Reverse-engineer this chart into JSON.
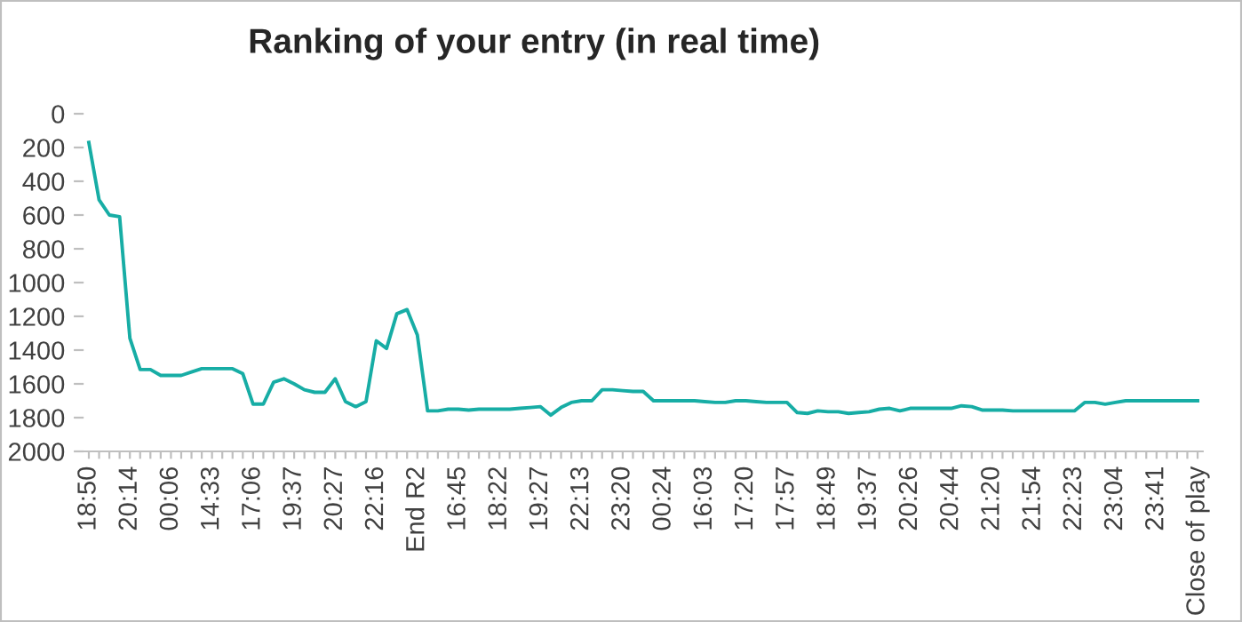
{
  "chart_data": {
    "type": "line",
    "title": "Ranking of your entry (in real time)",
    "categories": [
      "18:50",
      null,
      null,
      null,
      "20:14",
      null,
      null,
      null,
      "00:06",
      null,
      null,
      null,
      "14:33",
      null,
      null,
      null,
      "17:06",
      null,
      null,
      null,
      "19:37",
      null,
      null,
      null,
      "20:27",
      null,
      null,
      null,
      "22:16",
      null,
      null,
      null,
      "End R2",
      null,
      null,
      null,
      "16:45",
      null,
      null,
      null,
      "18:22",
      null,
      null,
      null,
      "19:27",
      null,
      null,
      null,
      "22:13",
      null,
      null,
      null,
      "23:20",
      null,
      null,
      null,
      "00:24",
      null,
      null,
      null,
      "16:03",
      null,
      null,
      null,
      "17:20",
      null,
      null,
      null,
      "17:57",
      null,
      null,
      null,
      "18:49",
      null,
      null,
      null,
      "19:37",
      null,
      null,
      null,
      "20:26",
      null,
      null,
      null,
      "20:44",
      null,
      null,
      null,
      "21:20",
      null,
      null,
      null,
      "21:54",
      null,
      null,
      null,
      "22:23",
      null,
      null,
      null,
      "23:04",
      null,
      null,
      null,
      "23:41",
      null,
      null,
      null,
      "Close of play"
    ],
    "series": [
      {
        "color": "#17ada5",
        "values": [
          170,
          510,
          600,
          610,
          1330,
          1515,
          1515,
          1550,
          1550,
          1550,
          1530,
          1510,
          1510,
          1510,
          1510,
          1540,
          1720,
          1720,
          1590,
          1570,
          1600,
          1635,
          1650,
          1650,
          1570,
          1705,
          1735,
          1705,
          1345,
          1390,
          1185,
          1160,
          1310,
          1760,
          1760,
          1750,
          1750,
          1755,
          1750,
          1750,
          1750,
          1750,
          1745,
          1740,
          1735,
          1785,
          1740,
          1710,
          1700,
          1700,
          1635,
          1635,
          1640,
          1645,
          1645,
          1700,
          1700,
          1700,
          1700,
          1700,
          1705,
          1710,
          1710,
          1700,
          1700,
          1705,
          1710,
          1710,
          1710,
          1770,
          1775,
          1760,
          1765,
          1765,
          1775,
          1770,
          1765,
          1750,
          1745,
          1760,
          1745,
          1745,
          1745,
          1745,
          1745,
          1730,
          1735,
          1755,
          1755,
          1755,
          1760,
          1760,
          1760,
          1760,
          1760,
          1760,
          1760,
          1710,
          1710,
          1720,
          1710,
          1700,
          1700,
          1700,
          1700,
          1700,
          1700,
          1700,
          1700
        ]
      }
    ],
    "ylim": [
      2000,
      0
    ],
    "yticks": [
      0,
      200,
      400,
      600,
      800,
      1000,
      1200,
      1400,
      1600,
      1800,
      2000
    ],
    "grid": false,
    "legend": false
  }
}
